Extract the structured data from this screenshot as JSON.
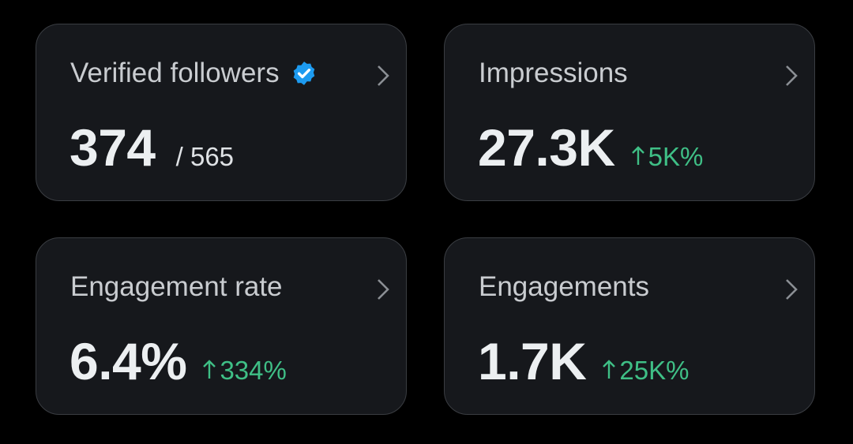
{
  "cards": [
    {
      "label": "Verified followers",
      "value": "374",
      "secondary": "/ 565"
    },
    {
      "label": "Impressions",
      "value": "27.3K",
      "change": "5K%"
    },
    {
      "label": "Engagement rate",
      "value": "6.4%",
      "change": "334%"
    },
    {
      "label": "Engagements",
      "value": "1.7K",
      "change": "25K%"
    }
  ]
}
